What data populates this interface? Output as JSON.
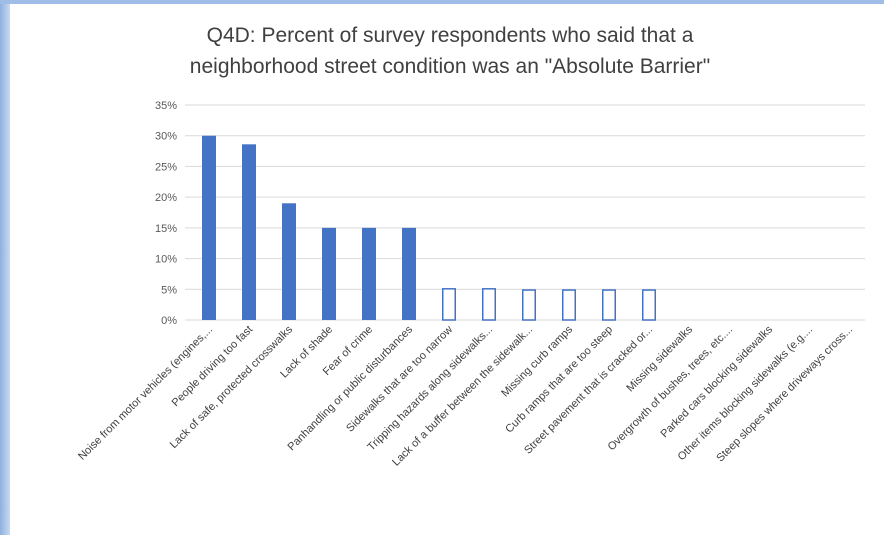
{
  "chart_data": {
    "type": "bar",
    "title_lines": [
      "Q4D: Percent of survey respondents who said that a",
      "neighborhood street condition was an \"Absolute Barrier\""
    ],
    "categories": [
      "Noise from motor vehicles (engines,...",
      "People driving too fast",
      "Lack of safe, protected crosswalks",
      "Lack of shade",
      "Fear of crime",
      "Panhandling or public disturbances",
      "Sidewalks that are too narrow",
      "Tripping hazards along sidewalks...",
      "Lack of a buffer between the sidewalk...",
      "Missing curb ramps",
      "Curb ramps that are too steep",
      "Street pavement that is cracked or...",
      "Missing sidewalks",
      "Overgrowth of bushes, trees, etc....",
      "Parked cars blocking sidewalks",
      "Other items blocking sidewalks (e.g....",
      "Steep slopes where driveways cross..."
    ],
    "values": [
      30,
      28.6,
      19,
      15,
      15,
      15,
      5.2,
      5.2,
      5,
      5,
      5,
      5,
      0,
      0,
      0,
      0,
      0
    ],
    "bar_style": [
      "solid",
      "solid",
      "solid",
      "solid",
      "solid",
      "solid",
      "outline",
      "outline",
      "outline",
      "outline",
      "outline",
      "outline",
      "none",
      "none",
      "none",
      "none",
      "none"
    ],
    "ylim": [
      0,
      35
    ],
    "yticks": [
      "0%",
      "5%",
      "10%",
      "15%",
      "20%",
      "25%",
      "30%",
      "35%"
    ],
    "grid": true,
    "colors": {
      "bar": "#4472c4",
      "grid": "#d9d9d9",
      "axis_text": "#595959"
    }
  }
}
